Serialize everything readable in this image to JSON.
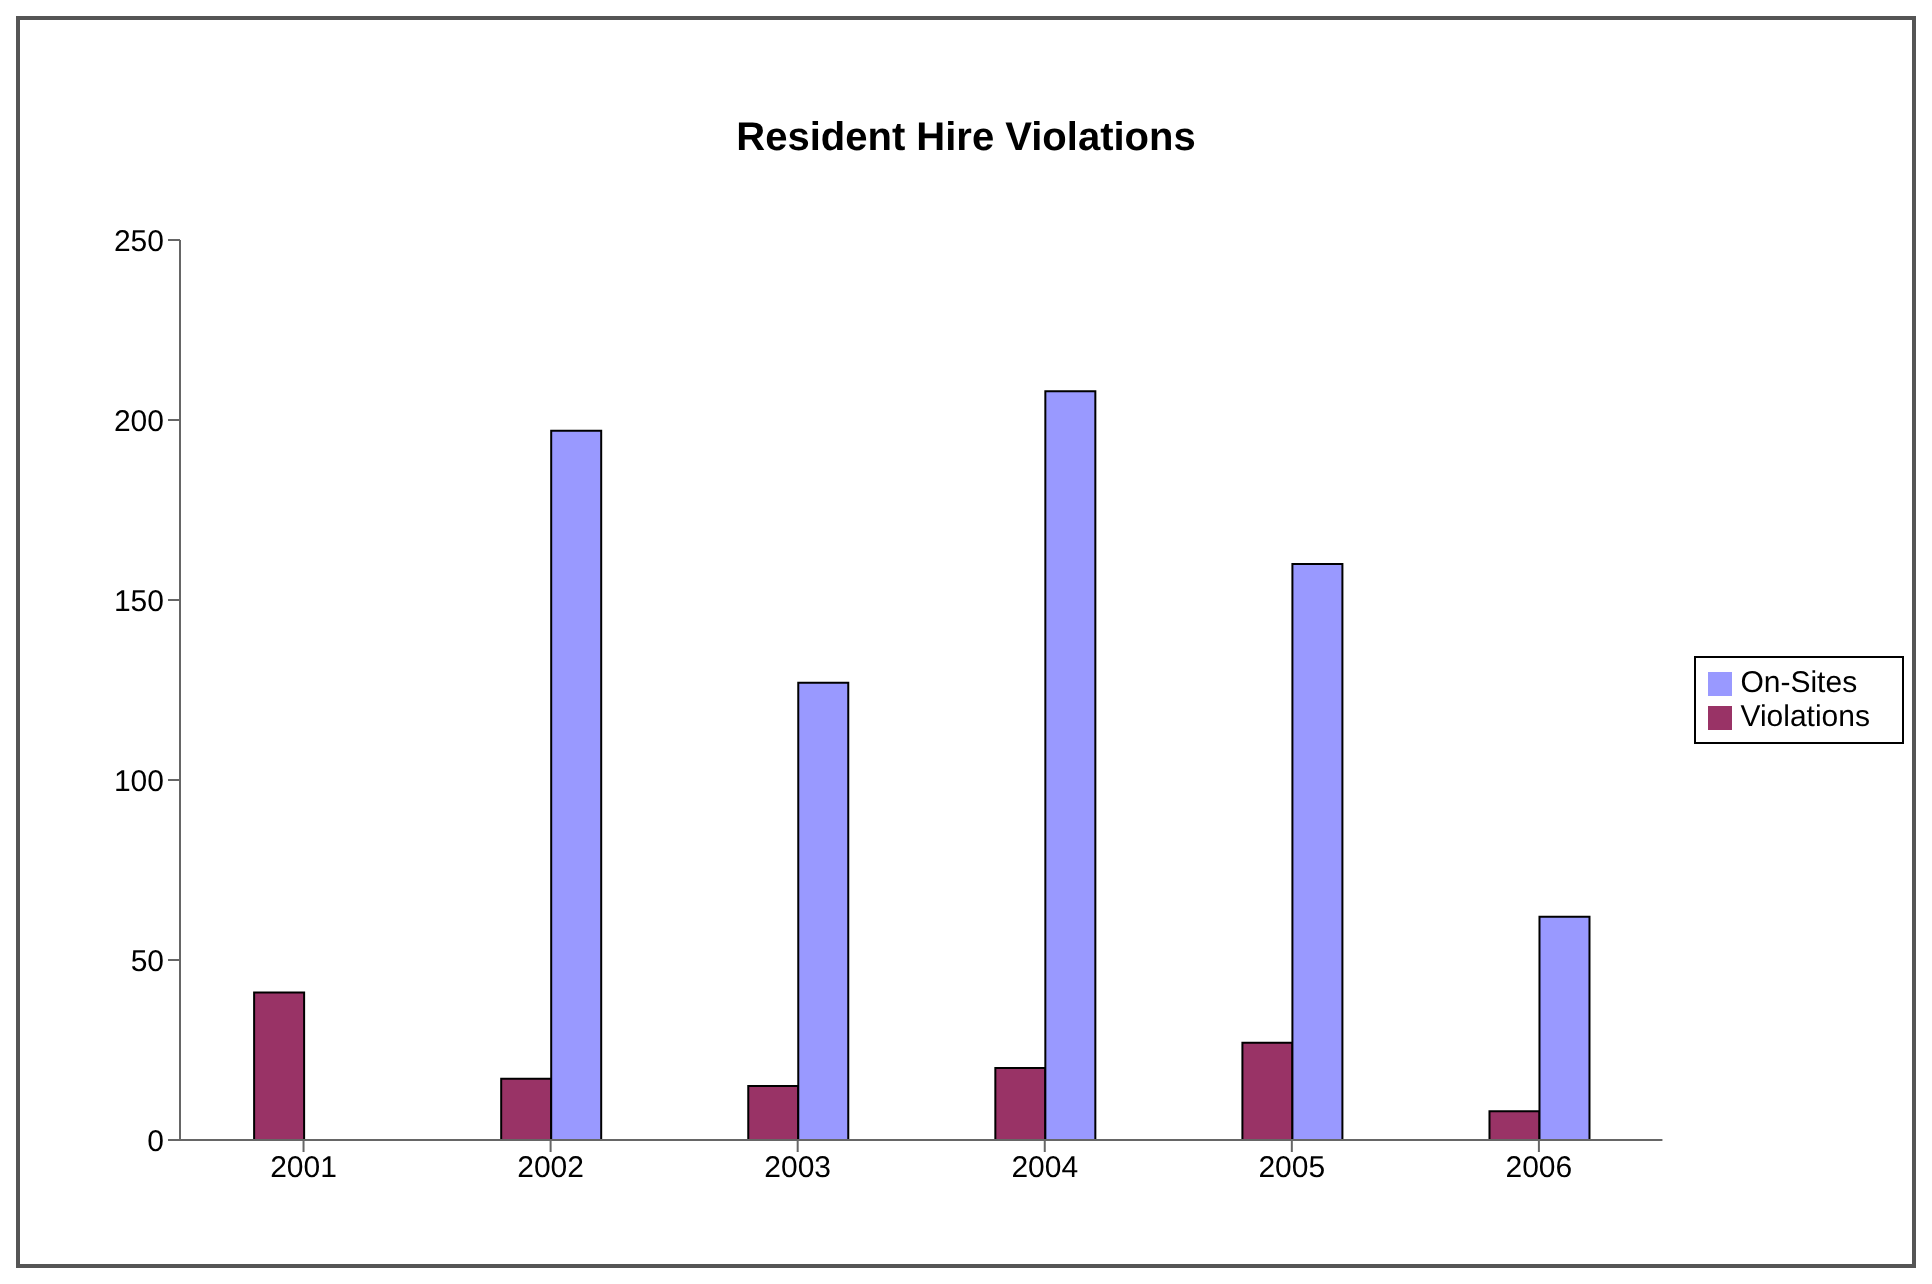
{
  "chart_data": {
    "type": "bar",
    "title": "Resident Hire Violations",
    "categories": [
      "2001",
      "2002",
      "2003",
      "2004",
      "2005",
      "2006"
    ],
    "series": [
      {
        "name": "Violations",
        "color": "#993366",
        "values": [
          41,
          17,
          15,
          20,
          27,
          8
        ]
      },
      {
        "name": "On-Sites",
        "color": "#9999ff",
        "values": [
          null,
          197,
          127,
          208,
          160,
          62
        ]
      }
    ],
    "ylim": [
      0,
      250
    ],
    "yticks": [
      0,
      50,
      100,
      150,
      200,
      250
    ],
    "grid": false,
    "legend": "right"
  }
}
